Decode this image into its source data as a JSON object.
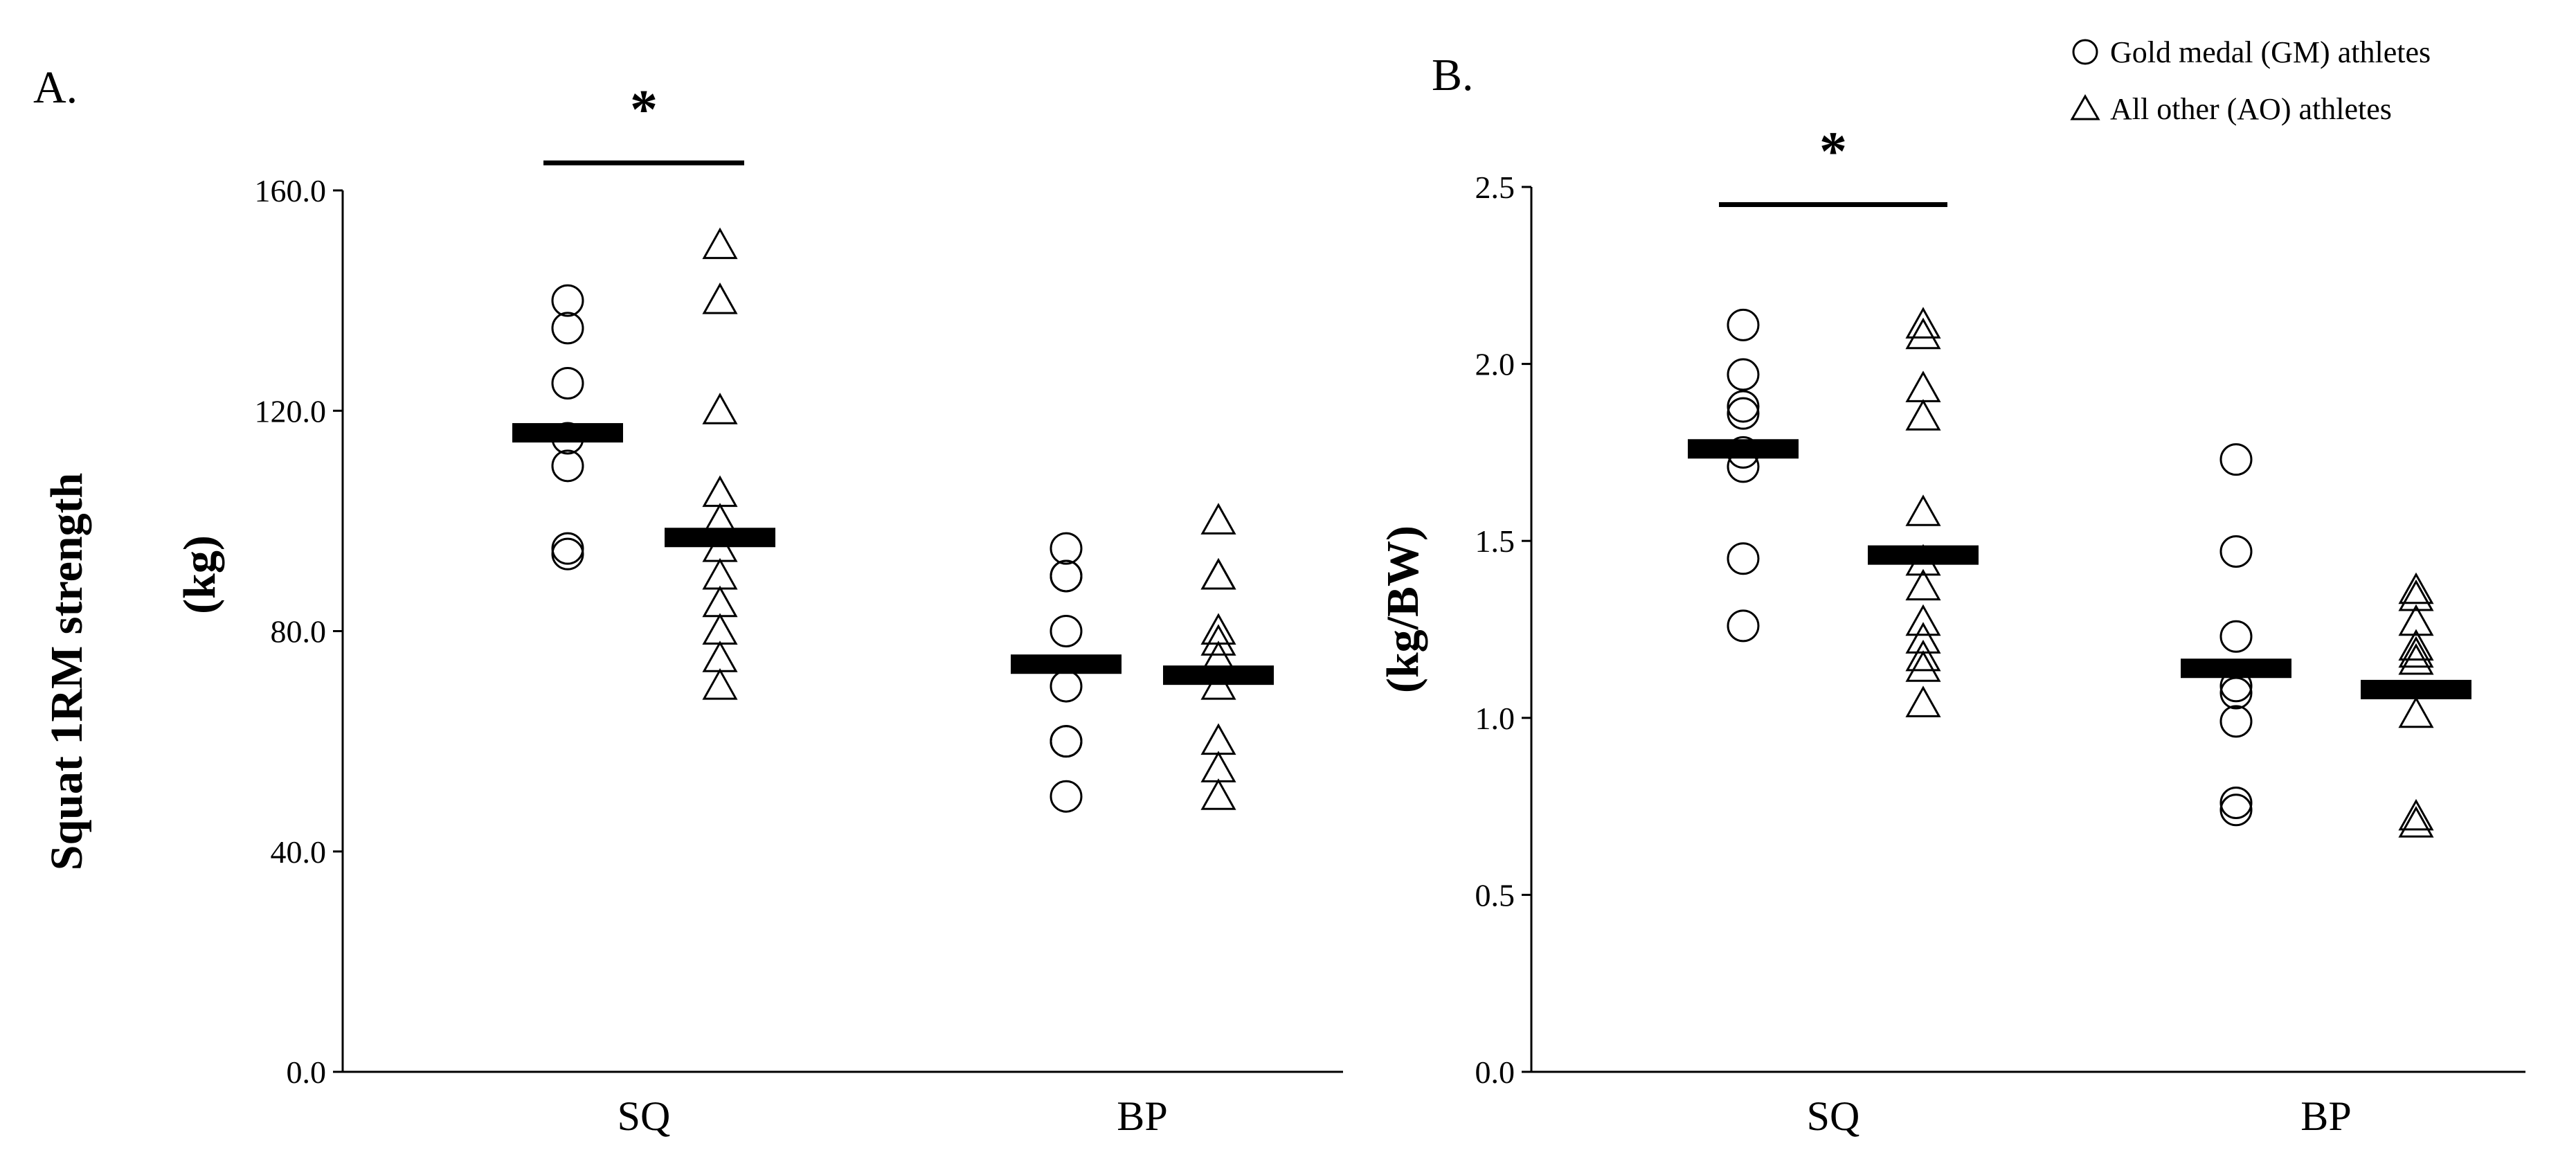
{
  "chart_data": [
    {
      "type": "scatter",
      "panel_label": "A.",
      "ylabel_line1": "Squat 1RM strength",
      "ylabel_line2": "(kg)",
      "categories": [
        "SQ",
        "BP"
      ],
      "ylim": [
        0,
        160
      ],
      "yticks": [
        "0.0",
        "40.0",
        "80.0",
        "120.0",
        "160.0"
      ],
      "significance": {
        "label": "*",
        "category": "SQ",
        "y": 165
      },
      "series": [
        {
          "name": "Gold medal (GM) athletes",
          "marker": "circle",
          "values": [
            [
              140,
              135,
              125,
              115,
              110,
              95,
              94
            ],
            [
              95,
              90,
              90,
              80,
              70,
              60,
              60,
              50
            ]
          ],
          "means": [
            116,
            74
          ]
        },
        {
          "name": "All other (AO) athletes",
          "marker": "triangle",
          "values": [
            [
              150,
              140,
              120,
              105,
              100,
              95,
              90,
              85,
              80,
              75,
              70
            ],
            [
              100,
              90,
              90,
              80,
              78,
              75,
              70,
              60,
              55,
              50
            ]
          ],
          "means": [
            97,
            72
          ]
        }
      ]
    },
    {
      "type": "scatter",
      "panel_label": "B.",
      "ylabel_line1": "(kg/BW)",
      "categories": [
        "SQ",
        "BP"
      ],
      "ylim": [
        0,
        2.5
      ],
      "yticks": [
        "0.0",
        "0.5",
        "1.0",
        "1.5",
        "2.0",
        "2.5"
      ],
      "significance": {
        "label": "*",
        "category": "SQ",
        "y": 2.45
      },
      "series": [
        {
          "name": "Gold medal (GM) athletes",
          "marker": "circle",
          "values": [
            [
              2.11,
              1.97,
              1.88,
              1.86,
              1.75,
              1.71,
              1.45,
              1.26
            ],
            [
              1.73,
              1.47,
              1.23,
              1.09,
              1.07,
              0.99,
              0.76,
              0.74
            ]
          ],
          "means": [
            1.76,
            1.14
          ]
        },
        {
          "name": "All other (AO) athletes",
          "marker": "triangle",
          "values": [
            [
              2.11,
              2.08,
              1.93,
              1.85,
              1.58,
              1.44,
              1.37,
              1.27,
              1.22,
              1.17,
              1.14,
              1.04
            ],
            [
              1.36,
              1.34,
              1.27,
              1.2,
              1.18,
              1.16,
              1.01,
              0.72,
              0.7
            ]
          ],
          "means": [
            1.46,
            1.08
          ]
        }
      ]
    }
  ],
  "legend": {
    "placement": "top-right",
    "items": [
      "Gold medal (GM) athletes",
      "All other (AO) athletes"
    ]
  }
}
